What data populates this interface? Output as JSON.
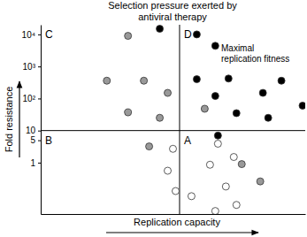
{
  "chart_data": {
    "type": "scatter",
    "title": [
      "Selection pressure exerted by",
      "antiviral therapy"
    ],
    "x_label": "Replication capacity",
    "y_label": "Fold resistance",
    "log": "y",
    "grid": false,
    "tick_labels": "y",
    "xlim": [
      0,
      10
    ],
    "xticks": [],
    "ylim": [
      0.025,
      20000
    ],
    "yticks": [
      1,
      5,
      10,
      {
        "value": 100,
        "label": "10²"
      },
      {
        "value": 1000,
        "label": "10³"
      },
      {
        "value": 10000,
        "label": "10⁴"
      }
    ],
    "dividers": {
      "x": 5.25,
      "y": 10
    },
    "quadrant_labels": [
      "A",
      "B",
      "C",
      "D"
    ],
    "annotation": [
      "Maximal",
      "replication fitness"
    ],
    "series": [
      {
        "color": "#000000",
        "marker": "circle",
        "x": [
          4.5,
          5.9,
          6.6,
          5.9,
          6.6,
          7.1,
          7.4,
          8.4,
          9.1,
          8.6,
          9.9,
          6.7
        ],
        "values": [
          15000,
          10000,
          4400,
          400,
          120,
          420,
          35,
          150,
          360,
          25,
          60,
          7
        ]
      },
      {
        "color": "#999999",
        "marker": "circle",
        "x": [
          3.3,
          2.5,
          3.9,
          4.8,
          3.3,
          4.5,
          6.2,
          4.1,
          7.6,
          8.3
        ],
        "values": [
          9000,
          360,
          360,
          150,
          37,
          25,
          48,
          3.2,
          0.9,
          0.26
        ]
      },
      {
        "color": "#ffffff",
        "marker": "circle",
        "x": [
          5.0,
          4.8,
          5.1,
          6.7,
          7.3,
          6.4,
          7.0,
          5.7,
          7.4,
          6.6
        ],
        "values": [
          2.7,
          0.56,
          0.13,
          3.9,
          1.5,
          0.86,
          0.18,
          0.09,
          0.048,
          0.031
        ]
      }
    ]
  }
}
